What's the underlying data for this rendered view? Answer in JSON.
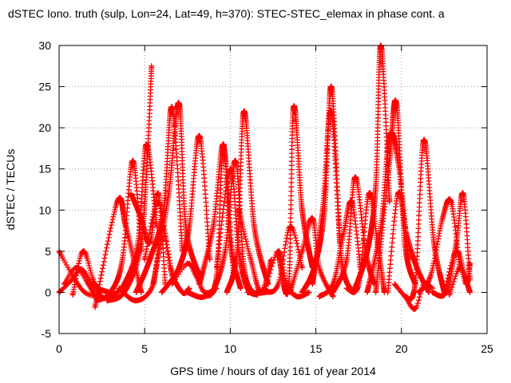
{
  "chart_data": {
    "type": "scatter",
    "title": "dSTEC Iono. truth (sulp, Lon=24, Lat=49, h=370): STEC-STEC_elemax in phase cont. a",
    "xlabel": "GPS time / hours of day 161 of year 2014",
    "ylabel": "dSTEC  / TECUs",
    "xlim": [
      0,
      25
    ],
    "ylim": [
      -5,
      30
    ],
    "x_ticks": [
      0,
      5,
      10,
      15,
      20,
      25
    ],
    "y_ticks": [
      -5,
      0,
      5,
      10,
      15,
      20,
      25,
      30
    ],
    "x_tick_labels": [
      "0",
      "5",
      "10",
      "15",
      "20",
      "25"
    ],
    "y_tick_labels": [
      "-5",
      "0",
      "5",
      "10",
      "15",
      "20",
      "25",
      "30"
    ],
    "grid": true,
    "legend": "none",
    "marker": "plus",
    "color": "#ff0000",
    "series": [
      {
        "x": [
          0.0,
          0.6,
          1.3,
          1.9,
          2.5
        ],
        "y": [
          0.0,
          1.2,
          2.8,
          1.0,
          -0.5
        ]
      },
      {
        "x": [
          0.0,
          0.8,
          1.5,
          2.3
        ],
        "y": [
          5.0,
          2.0,
          0.0,
          -0.5
        ]
      },
      {
        "x": [
          0.3,
          1.0,
          1.7,
          2.2
        ],
        "y": [
          1.0,
          3.0,
          1.0,
          -0.8
        ]
      },
      {
        "x": [
          0.8,
          1.4,
          2.1,
          2.9
        ],
        "y": [
          -0.3,
          5.0,
          1.0,
          0.0
        ]
      },
      {
        "x": [
          2.1,
          3.4,
          3.9,
          4.8
        ],
        "y": [
          -1.8,
          11.0,
          8.0,
          0.0
        ]
      },
      {
        "x": [
          2.2,
          3.0,
          3.7,
          4.3,
          4.8
        ],
        "y": [
          -1.0,
          0.0,
          4.0,
          16.0,
          5.0
        ]
      },
      {
        "x": [
          2.8,
          3.8,
          4.7,
          5.1,
          5.4
        ],
        "y": [
          -1.0,
          0.0,
          5.0,
          14.0,
          27.5
        ]
      },
      {
        "x": [
          3.0,
          3.8,
          4.6,
          5.1,
          5.7
        ],
        "y": [
          -0.5,
          1.0,
          6.0,
          18.0,
          8.0
        ]
      },
      {
        "x": [
          3.5,
          4.5,
          5.5,
          6.0,
          6.6
        ],
        "y": [
          0.5,
          -1.0,
          1.0,
          8.0,
          2.0
        ]
      },
      {
        "x": [
          4.2,
          4.8,
          5.3,
          5.8,
          6.2
        ],
        "y": [
          12.0,
          9.0,
          6.0,
          12.0,
          1.0
        ]
      },
      {
        "x": [
          4.5,
          5.3,
          6.1,
          6.6,
          7.2
        ],
        "y": [
          0.0,
          4.0,
          10.0,
          22.5,
          5.0
        ]
      },
      {
        "x": [
          5.0,
          5.8,
          6.5,
          7.2,
          7.6
        ],
        "y": [
          4.0,
          11.0,
          3.0,
          0.0,
          0.5
        ]
      },
      {
        "x": [
          5.5,
          6.4,
          7.0,
          7.4,
          8.2
        ],
        "y": [
          1.0,
          12.0,
          23.0,
          8.0,
          2.0
        ]
      },
      {
        "x": [
          6.0,
          7.0,
          7.6,
          8.2,
          8.8
        ],
        "y": [
          0.0,
          3.0,
          8.0,
          19.0,
          4.0
        ]
      },
      {
        "x": [
          6.6,
          7.5,
          8.0,
          8.5,
          9.2
        ],
        "y": [
          1.0,
          3.5,
          2.0,
          0.0,
          0.5
        ]
      },
      {
        "x": [
          7.5,
          8.5,
          9.2,
          9.6,
          10.2
        ],
        "y": [
          0.0,
          -0.5,
          2.0,
          17.5,
          2.0
        ]
      },
      {
        "x": [
          8.2,
          9.0,
          9.6,
          10.0,
          10.6
        ],
        "y": [
          1.0,
          8.0,
          18.0,
          6.0,
          0.5
        ]
      },
      {
        "x": [
          9.0,
          9.7,
          10.3,
          10.8,
          11.3
        ],
        "y": [
          0.0,
          5.0,
          16.0,
          3.0,
          0.0
        ]
      },
      {
        "x": [
          9.2,
          10.0,
          10.5,
          11.0,
          11.6
        ],
        "y": [
          3.0,
          15.0,
          5.0,
          0.5,
          -0.3
        ]
      },
      {
        "x": [
          9.8,
          10.4,
          10.8,
          11.4,
          12.2
        ],
        "y": [
          0.0,
          5.0,
          22.0,
          8.0,
          1.0
        ]
      },
      {
        "x": [
          10.5,
          11.2,
          11.8,
          12.4
        ],
        "y": [
          10.0,
          4.0,
          0.0,
          4.0
        ]
      },
      {
        "x": [
          11.0,
          12.0,
          12.8,
          13.5,
          14.2
        ],
        "y": [
          0.0,
          0.0,
          1.0,
          8.0,
          3.0
        ]
      },
      {
        "x": [
          12.0,
          12.8,
          13.3,
          13.9,
          14.6
        ],
        "y": [
          0.0,
          5.0,
          1.0,
          -0.5,
          0.0
        ]
      },
      {
        "x": [
          12.8,
          13.4,
          13.7,
          14.2,
          14.8
        ],
        "y": [
          5.0,
          0.5,
          22.5,
          10.0,
          3.0
        ]
      },
      {
        "x": [
          13.5,
          14.2,
          14.8,
          15.2,
          16.0
        ],
        "y": [
          0.0,
          5.0,
          9.0,
          3.0,
          -0.5
        ]
      },
      {
        "x": [
          14.2,
          14.9,
          15.5,
          15.9,
          16.4
        ],
        "y": [
          0.0,
          3.0,
          10.0,
          25.0,
          6.0
        ]
      },
      {
        "x": [
          14.8,
          15.4,
          15.9,
          16.5,
          17.2
        ],
        "y": [
          1.0,
          10.0,
          22.0,
          4.0,
          0.0
        ]
      },
      {
        "x": [
          15.2,
          16.0,
          16.6,
          17.1,
          17.6
        ],
        "y": [
          -0.5,
          1.0,
          7.0,
          11.0,
          3.0
        ]
      },
      {
        "x": [
          16.0,
          16.8,
          17.3,
          17.9,
          18.4
        ],
        "y": [
          0.0,
          4.0,
          14.0,
          5.0,
          1.0
        ]
      },
      {
        "x": [
          16.8,
          17.5,
          18.1,
          18.6,
          19.0
        ],
        "y": [
          0.5,
          1.0,
          12.0,
          6.0,
          0.0
        ]
      },
      {
        "x": [
          17.2,
          18.0,
          18.5,
          18.8,
          19.3
        ],
        "y": [
          0.0,
          5.0,
          13.0,
          30.0,
          11.0
        ]
      },
      {
        "x": [
          18.0,
          18.8,
          19.3,
          19.8,
          20.4
        ],
        "y": [
          0.0,
          8.0,
          19.0,
          16.0,
          4.0
        ]
      },
      {
        "x": [
          18.5,
          19.3,
          19.7,
          20.2,
          20.8
        ],
        "y": [
          0.0,
          16.0,
          23.0,
          6.0,
          1.0
        ]
      },
      {
        "x": [
          19.2,
          19.8,
          20.3,
          20.9,
          21.6
        ],
        "y": [
          0.0,
          12.0,
          7.0,
          3.0,
          0.0
        ]
      },
      {
        "x": [
          19.6,
          20.2,
          20.8,
          21.3,
          21.8
        ],
        "y": [
          1.0,
          -0.5,
          -2.0,
          1.0,
          0.5
        ]
      },
      {
        "x": [
          20.2,
          20.8,
          21.3,
          21.9,
          22.5
        ],
        "y": [
          -0.5,
          1.0,
          18.5,
          6.0,
          0.0
        ]
      },
      {
        "x": [
          21.0,
          21.7,
          22.4,
          22.9,
          23.4
        ],
        "y": [
          0.0,
          2.0,
          9.0,
          11.0,
          3.0
        ]
      },
      {
        "x": [
          21.8,
          22.6,
          23.2,
          23.6,
          24.0
        ],
        "y": [
          0.0,
          0.0,
          6.0,
          12.0,
          1.5
        ]
      },
      {
        "x": [
          22.5,
          23.2,
          23.7,
          24.0
        ],
        "y": [
          0.0,
          5.0,
          2.0,
          0.0
        ]
      },
      {
        "x": [
          22.8,
          23.4,
          23.8,
          24.0
        ],
        "y": [
          -0.3,
          3.0,
          1.0,
          3.5
        ]
      }
    ]
  }
}
